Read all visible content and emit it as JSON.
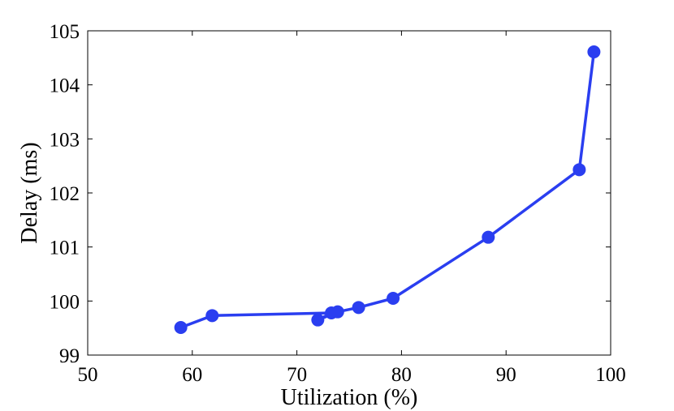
{
  "chart_data": {
    "type": "line",
    "xlabel": "Utilization (%)",
    "ylabel": "Delay (ms)",
    "xlim": [
      50,
      100
    ],
    "ylim": [
      99,
      105
    ],
    "xticks": [
      50,
      60,
      70,
      80,
      90,
      100
    ],
    "yticks": [
      99,
      100,
      101,
      102,
      103,
      104,
      105
    ],
    "xtick_labels": [
      "50",
      "60",
      "70",
      "80",
      "90",
      "100"
    ],
    "ytick_labels": [
      "99",
      "100",
      "101",
      "102",
      "103",
      "104",
      "105"
    ],
    "grid": false,
    "legend": "none",
    "series": [
      {
        "color": "#2a3ef0",
        "marker": "circle",
        "x": [
          58.9,
          61.9,
          72.0,
          73.3,
          73.9,
          75.9,
          79.2,
          88.3,
          97.0,
          98.4
        ],
        "y": [
          99.51,
          99.73,
          99.65,
          99.78,
          99.8,
          99.88,
          100.05,
          101.18,
          102.43,
          104.61
        ],
        "line_order": [
          0,
          1,
          3,
          2,
          4,
          5,
          6,
          7,
          8,
          9
        ]
      }
    ]
  }
}
